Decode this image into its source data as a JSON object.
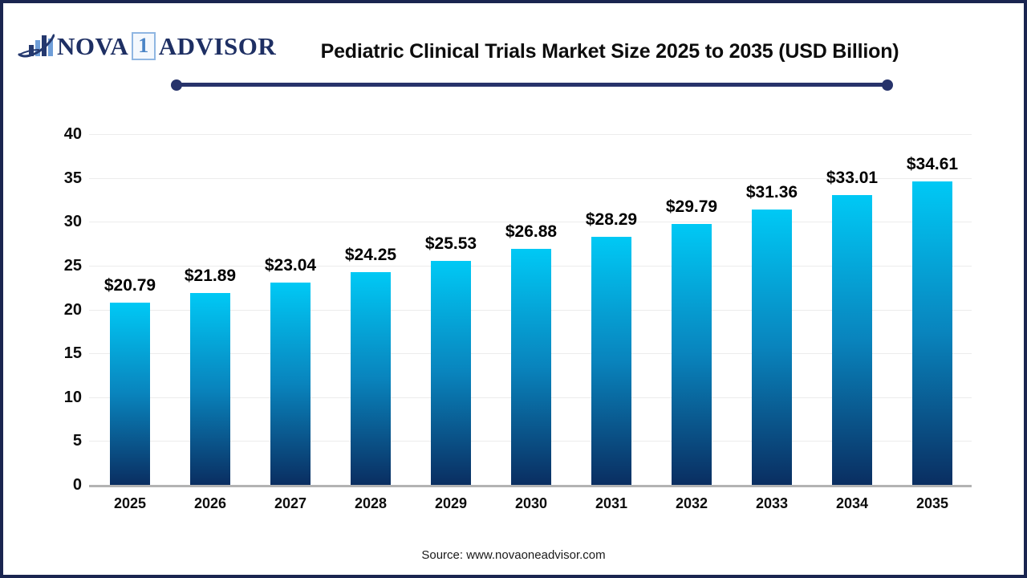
{
  "logo": {
    "part1": "NOVA",
    "part2": "1",
    "part3": "ADVISOR",
    "icon": "bar-chart-swoosh-icon"
  },
  "header": {
    "title": "Pediatric Clinical Trials Market Size 2025 to 2035 (USD Billion)"
  },
  "footer": {
    "source": "Source: www.novaoneadvisor.com"
  },
  "colors": {
    "frame_border": "#1a2550",
    "title_rule": "#27336b",
    "bar_gradient_top": "#00c9f5",
    "bar_gradient_mid": "#0984bd",
    "bar_gradient_bottom": "#0a2e61",
    "gridline": "#ececec",
    "axis_baseline": "#b3b3b3",
    "logo_navy": "#1e2f63",
    "logo_light_blue": "#4a84c6"
  },
  "chart_data": {
    "type": "bar",
    "title": "Pediatric Clinical Trials Market Size 2025 to 2035 (USD Billion)",
    "unit": "USD Billion",
    "categories": [
      "2025",
      "2026",
      "2027",
      "2028",
      "2029",
      "2030",
      "2031",
      "2032",
      "2033",
      "2034",
      "2035"
    ],
    "values": [
      20.79,
      21.89,
      23.04,
      24.25,
      25.53,
      26.88,
      28.29,
      29.79,
      31.36,
      33.01,
      34.61
    ],
    "data_labels": [
      "$20.79",
      "$21.89",
      "$23.04",
      "$24.25",
      "$25.53",
      "$26.88",
      "$28.29",
      "$29.79",
      "$31.36",
      "$33.01",
      "$34.61"
    ],
    "value_prefix": "$",
    "xlabel": "",
    "ylabel": "",
    "ylim": [
      0,
      40
    ],
    "yticks": [
      0,
      5,
      10,
      15,
      20,
      25,
      30,
      35,
      40
    ],
    "grid": "horizontal",
    "legend": "none"
  }
}
